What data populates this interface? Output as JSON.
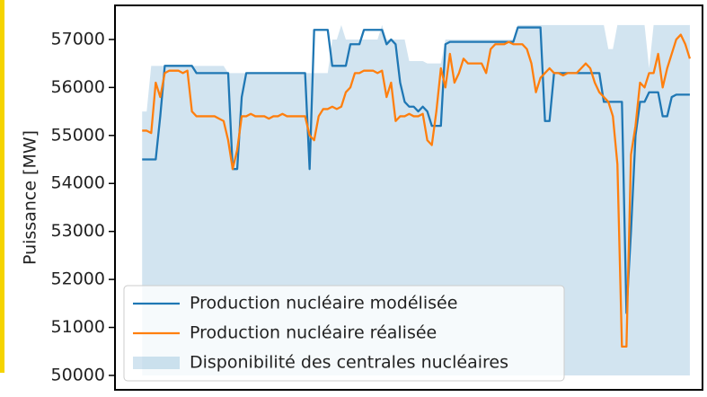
{
  "chart_data": {
    "type": "line",
    "ylabel": "Puissance [MW]",
    "x": [
      0,
      1,
      2,
      3,
      4,
      5,
      6,
      7,
      8,
      9,
      10,
      11,
      12,
      13,
      14,
      15,
      16,
      17,
      18,
      19,
      20,
      21,
      22,
      23,
      24,
      25,
      26,
      27,
      28,
      29,
      30,
      31,
      32,
      33,
      34,
      35,
      36,
      37,
      38,
      39,
      40,
      41,
      42,
      43,
      44,
      45,
      46,
      47,
      48,
      49,
      50,
      51,
      52,
      53,
      54,
      55,
      56,
      57,
      58,
      59,
      60,
      61,
      62,
      63,
      64,
      65,
      66,
      67,
      68,
      69,
      70,
      71,
      72,
      73,
      74,
      75,
      76,
      77,
      78,
      79,
      80,
      81,
      82,
      83,
      84,
      85,
      86,
      87,
      88,
      89,
      90,
      91,
      92,
      93,
      94,
      95,
      96,
      97,
      98,
      99,
      100,
      101,
      102,
      103,
      104,
      105,
      106,
      107,
      108,
      109,
      110,
      111,
      112,
      113,
      114,
      115,
      116,
      117,
      118,
      119,
      120,
      121
    ],
    "series": [
      {
        "name": "Production nucléaire modélisée",
        "color": "#1f77b4",
        "kind": "line",
        "values": [
          54500,
          54500,
          54500,
          54500,
          55400,
          56450,
          56450,
          56450,
          56450,
          56450,
          56450,
          56450,
          56300,
          56300,
          56300,
          56300,
          56300,
          56300,
          56300,
          56300,
          54300,
          54300,
          55800,
          56300,
          56300,
          56300,
          56300,
          56300,
          56300,
          56300,
          56300,
          56300,
          56300,
          56300,
          56300,
          56300,
          56300,
          54300,
          57200,
          57200,
          57200,
          57200,
          56450,
          56450,
          56450,
          56450,
          56900,
          56900,
          56900,
          57200,
          57200,
          57200,
          57200,
          57200,
          56900,
          57000,
          56900,
          56100,
          55700,
          55600,
          55600,
          55500,
          55600,
          55500,
          55200,
          55200,
          55200,
          56900,
          56950,
          56950,
          56950,
          56950,
          56950,
          56950,
          56950,
          56950,
          56950,
          56950,
          56950,
          56950,
          56950,
          56950,
          56950,
          57250,
          57250,
          57250,
          57250,
          57250,
          57250,
          55300,
          55300,
          56300,
          56300,
          56300,
          56300,
          56300,
          56300,
          56300,
          56300,
          56300,
          56300,
          56300,
          55700,
          55700,
          55700,
          55700,
          55700,
          51300,
          53000,
          55000,
          55700,
          55700,
          55900,
          55900,
          55900,
          55400,
          55400,
          55800,
          55850,
          55850,
          55850,
          55850
        ]
      },
      {
        "name": "Production nucléaire réalisée",
        "color": "#ff7f0e",
        "kind": "line",
        "values": [
          55100,
          55100,
          55050,
          56100,
          55800,
          56300,
          56350,
          56350,
          56350,
          56300,
          56350,
          55500,
          55400,
          55400,
          55400,
          55400,
          55400,
          55350,
          55300,
          54900,
          54300,
          54700,
          55400,
          55400,
          55450,
          55400,
          55400,
          55400,
          55350,
          55400,
          55400,
          55450,
          55400,
          55400,
          55400,
          55400,
          55400,
          55000,
          54900,
          55400,
          55550,
          55550,
          55600,
          55550,
          55600,
          55900,
          56000,
          56300,
          56300,
          56350,
          56350,
          56350,
          56300,
          56350,
          55800,
          56100,
          55300,
          55400,
          55400,
          55450,
          55400,
          55400,
          55450,
          54900,
          54800,
          55500,
          56400,
          56000,
          56700,
          56100,
          56300,
          56600,
          56500,
          56500,
          56500,
          56500,
          56300,
          56800,
          56900,
          56900,
          56900,
          56950,
          56900,
          56900,
          56900,
          56800,
          56500,
          55900,
          56200,
          56300,
          56400,
          56300,
          56300,
          56250,
          56300,
          56300,
          56300,
          56400,
          56500,
          56400,
          56100,
          55900,
          55800,
          55700,
          55400,
          54400,
          50600,
          50600,
          54600,
          55200,
          56100,
          56000,
          56300,
          56300,
          56700,
          56000,
          56400,
          56700,
          57000,
          57100,
          56900,
          56600
        ]
      },
      {
        "name": "Disponibilité des centrales nucléaires",
        "color": "#1f77b4",
        "kind": "area",
        "values": [
          55500,
          55500,
          56450,
          56450,
          56450,
          56450,
          56450,
          56450,
          56450,
          56450,
          56450,
          56450,
          56450,
          56450,
          56450,
          56450,
          56450,
          56450,
          56450,
          56300,
          56300,
          56300,
          56300,
          56300,
          56300,
          56300,
          56300,
          56300,
          56300,
          56300,
          56300,
          56300,
          56300,
          56300,
          56300,
          56300,
          56300,
          56300,
          56300,
          56300,
          56300,
          56300,
          57000,
          57000,
          57300,
          57000,
          57000,
          57000,
          57000,
          57000,
          57000,
          57000,
          57000,
          57300,
          57000,
          57000,
          57000,
          57000,
          57000,
          56550,
          56550,
          56550,
          56550,
          56500,
          56500,
          56500,
          56500,
          57000,
          57000,
          57000,
          57000,
          57000,
          57000,
          57000,
          57000,
          57000,
          57000,
          57000,
          57000,
          57000,
          57000,
          57000,
          57000,
          57300,
          57300,
          57300,
          57300,
          57300,
          57300,
          57300,
          57300,
          57300,
          57300,
          57300,
          57300,
          57300,
          57300,
          57300,
          57300,
          57300,
          57300,
          57300,
          57300,
          56800,
          56800,
          57300,
          57300,
          57300,
          57300,
          57300,
          57300,
          57300,
          56400,
          57300,
          57300,
          57300,
          57300,
          57300,
          57300,
          57300,
          57300,
          57300
        ]
      }
    ],
    "xlim": [
      -6,
      123.8
    ],
    "ylim": [
      49700,
      57710
    ],
    "yticks": [
      50000,
      51000,
      52000,
      53000,
      54000,
      55000,
      56000,
      57000
    ],
    "legend": "lower left"
  }
}
